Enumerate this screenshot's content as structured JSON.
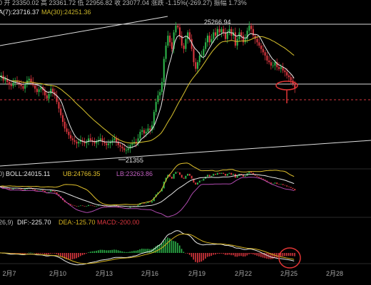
{
  "header": {
    "ohlc_text": "0 开 23350.02 高 23361.72 低 22956.82 收 23077.04 涨跌 -1.15%(-269.27) 振幅 1.73%",
    "ma7_label": "A(7):23716.37",
    "ma30_label": "MA(30):24251.36"
  },
  "boll_header": {
    "period": "0)",
    "boll": "BOLL:24015.11",
    "ub": "UB:24766.35",
    "lb": "LB:23263.86"
  },
  "macd_header": {
    "params": "26,9)",
    "dif": "DIF:-225.70",
    "dea": "DEA:-125.70",
    "macd": "MACD:-200.00"
  },
  "annotations": {
    "high": "25266.94",
    "low": "21355"
  },
  "colors": {
    "bg": "#000000",
    "up": "#2db44a",
    "down": "#d9363e",
    "ma7": "#e8e8e8",
    "ma30": "#c9b42a",
    "ub": "#e0c02c",
    "lb": "#b04bb0",
    "dif": "#e8e8e8",
    "dea": "#d4b21f",
    "circle": "#e03535",
    "header_gray": "#b5b5b5"
  },
  "chart_data": [
    {
      "type": "candlestick",
      "title": "",
      "x_categories": [
        "2月7",
        "2月10",
        "2月13",
        "2月16",
        "2月19",
        "2月22",
        "2月25",
        "2月28"
      ],
      "ylim": [
        20400,
        26000
      ],
      "ma7": 23716.37,
      "ma30": 24251.36,
      "current": {
        "open": 23350.02,
        "high": 23361.72,
        "low": 22956.82,
        "close": 23077.04,
        "change_pct": -1.15,
        "change": -269.27,
        "amplitude_pct": 1.73
      },
      "high_label": 25266.94,
      "low_label": 21355,
      "closes_estimated": [
        23650,
        23700,
        23550,
        23600,
        23500,
        23420,
        23380,
        23480,
        23550,
        23500,
        23450,
        23380,
        23300,
        23420,
        23550,
        23600,
        23500,
        23400,
        23300,
        23200,
        23280,
        23350,
        23250,
        23100,
        23000,
        23150,
        23300,
        23200,
        23100,
        22900,
        22700,
        22500,
        22300,
        22100,
        22000,
        21900,
        21800,
        21750,
        21700,
        21650,
        21700,
        21750,
        21700,
        21650,
        21700,
        21800,
        21750,
        21700,
        21650,
        21700,
        21750,
        21800,
        21700,
        21650,
        21600,
        21650,
        21700,
        21750,
        21800,
        21700,
        21600,
        21550,
        21500,
        21450,
        21450,
        21500,
        21600,
        21650,
        21700,
        21650,
        21800,
        22000,
        22050,
        21950,
        22000,
        22100,
        22050,
        22200,
        22600,
        22900,
        23100,
        23200,
        23500,
        24200,
        24600,
        24900,
        24700,
        24500,
        25000,
        25200,
        25150,
        24900,
        24600,
        24500,
        24800,
        25000,
        24800,
        24500,
        24100,
        23900,
        24100,
        24300,
        24300,
        24500,
        24700,
        24900,
        24700,
        24800,
        25000,
        24900,
        25100,
        25000,
        25100,
        25000,
        24800,
        25000,
        25100,
        24900,
        25000,
        24600,
        24800,
        25000,
        24900,
        24700,
        24800,
        25050,
        25200,
        25100,
        24900,
        24800,
        24700,
        24600,
        24500,
        24400,
        24300,
        24150,
        24100,
        24000,
        24000,
        24100,
        23950,
        23900,
        23950,
        23850,
        23800,
        23700,
        23650,
        23550,
        23450,
        23300
      ]
    },
    {
      "type": "line",
      "title": "BOLL",
      "boll": 24015.11,
      "ub": 24766.35,
      "lb": 23263.86
    },
    {
      "type": "bar",
      "title": "MACD",
      "dif": -225.7,
      "dea": -125.7,
      "macd": -200.0
    }
  ]
}
